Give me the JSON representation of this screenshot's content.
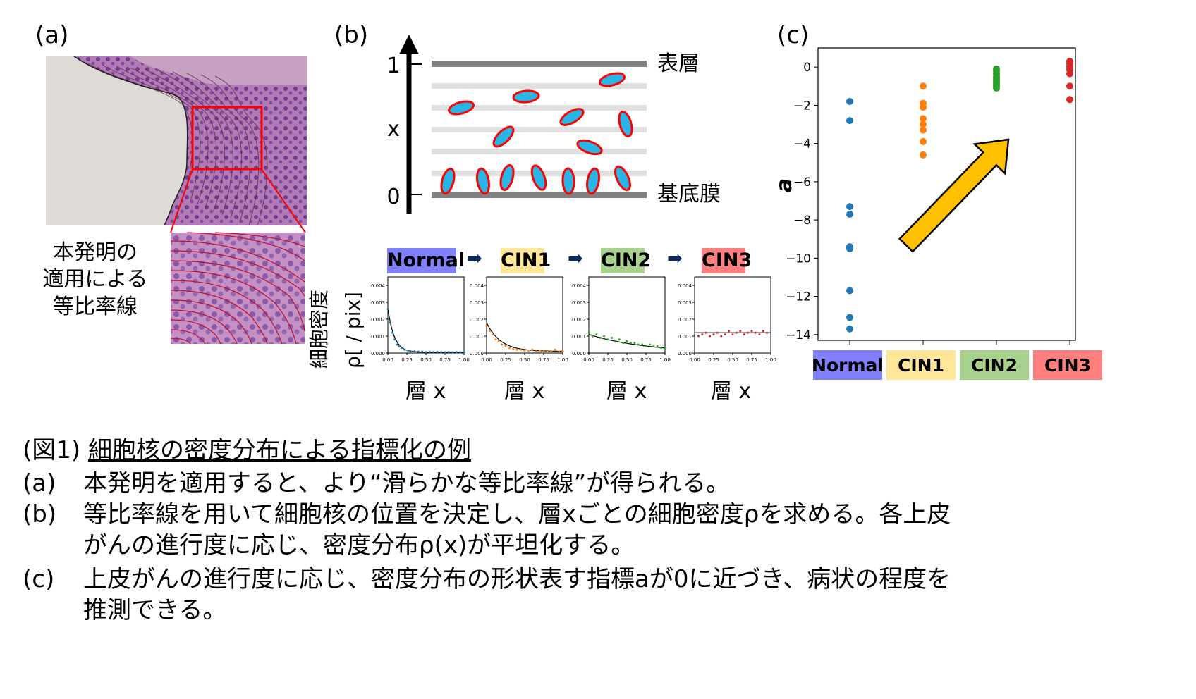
{
  "panel_labels": {
    "a": "(a)",
    "b": "(b)",
    "c": "(c)"
  },
  "panel_a": {
    "annotation_lines": [
      "本発明の",
      "適用による",
      "等比率線"
    ]
  },
  "panel_b": {
    "axis_top": "1",
    "axis_mid": "x",
    "axis_bottom": "0",
    "layer_top_label": "表層",
    "layer_bottom_label": "基底膜",
    "stages": [
      "Normal",
      "CIN1",
      "CIN2",
      "CIN3"
    ],
    "stage_colors": [
      "#8080ff",
      "#ffe699",
      "#a9d18e",
      "#ff7f7f"
    ],
    "arrow_glyph": "➡",
    "ylabel_jp": "細胞密度",
    "ylabel_unit": "ρ[ / pix]",
    "xlabel": "層 x",
    "mini_yticks": [
      "0.004",
      "0.003",
      "0.002",
      "0.001",
      "0.000"
    ],
    "mini_xticks": [
      "0.00",
      "0.25",
      "0.50",
      "0.75",
      "1.00"
    ],
    "mini_plots": [
      {
        "stage": "Normal",
        "point_color": "#1f77b4",
        "points": [
          [
            0.0,
            0.0026
          ],
          [
            0.03,
            0.0018
          ],
          [
            0.06,
            0.0012
          ],
          [
            0.09,
            0.0008
          ],
          [
            0.12,
            0.0005
          ],
          [
            0.15,
            0.0004
          ],
          [
            0.18,
            0.0003
          ],
          [
            0.22,
            0.0002
          ],
          [
            0.26,
            0.00015
          ],
          [
            0.3,
            0.0001
          ],
          [
            0.35,
            0.0001
          ],
          [
            0.4,
            8e-05
          ],
          [
            0.45,
            8e-05
          ],
          [
            0.5,
            5e-05
          ],
          [
            0.55,
            6e-05
          ],
          [
            0.6,
            5e-05
          ],
          [
            0.65,
            6e-05
          ],
          [
            0.7,
            5e-05
          ],
          [
            0.75,
            4e-05
          ],
          [
            0.8,
            5e-05
          ],
          [
            0.85,
            4e-05
          ],
          [
            0.9,
            5e-05
          ],
          [
            0.95,
            4e-05
          ],
          [
            1.0,
            5e-05
          ]
        ],
        "fit": {
          "a": -12.0,
          "b": 0.0026,
          "c": 4e-05
        }
      },
      {
        "stage": "CIN1",
        "point_color": "#ff7f0e",
        "points": [
          [
            0.0,
            0.0016
          ],
          [
            0.04,
            0.0013
          ],
          [
            0.08,
            0.0011
          ],
          [
            0.12,
            0.0008
          ],
          [
            0.16,
            0.0007
          ],
          [
            0.2,
            0.0005
          ],
          [
            0.25,
            0.0004
          ],
          [
            0.3,
            0.0003
          ],
          [
            0.35,
            0.00025
          ],
          [
            0.4,
            0.0002
          ],
          [
            0.45,
            0.0002
          ],
          [
            0.5,
            0.00015
          ],
          [
            0.55,
            0.00015
          ],
          [
            0.6,
            0.0002
          ],
          [
            0.65,
            0.0001
          ],
          [
            0.7,
            0.00015
          ],
          [
            0.75,
            0.0001
          ],
          [
            0.8,
            0.00015
          ],
          [
            0.85,
            0.0001
          ],
          [
            0.9,
            0.0002
          ],
          [
            0.95,
            0.0001
          ],
          [
            1.0,
            0.00012
          ]
        ],
        "fit": {
          "a": -5.5,
          "b": 0.0017,
          "c": 0.0001
        }
      },
      {
        "stage": "CIN2",
        "point_color": "#2ca02c",
        "points": [
          [
            0.0,
            0.0012
          ],
          [
            0.05,
            0.001
          ],
          [
            0.1,
            0.0011
          ],
          [
            0.15,
            0.0009
          ],
          [
            0.2,
            0.001
          ],
          [
            0.25,
            0.0008
          ],
          [
            0.3,
            0.0009
          ],
          [
            0.35,
            0.0007
          ],
          [
            0.4,
            0.0008
          ],
          [
            0.45,
            0.0006
          ],
          [
            0.5,
            0.0007
          ],
          [
            0.55,
            0.0006
          ],
          [
            0.6,
            0.0006
          ],
          [
            0.65,
            0.0005
          ],
          [
            0.7,
            0.0005
          ],
          [
            0.75,
            0.0004
          ],
          [
            0.8,
            0.0005
          ],
          [
            0.85,
            0.0004
          ],
          [
            0.9,
            0.0004
          ],
          [
            0.95,
            0.0003
          ],
          [
            1.0,
            0.0003
          ]
        ],
        "fit": {
          "a": -1.3,
          "b": 0.0011,
          "c": 0.0
        }
      },
      {
        "stage": "CIN3",
        "point_color": "#d62728",
        "points": [
          [
            0.05,
            0.001
          ],
          [
            0.1,
            0.0011
          ],
          [
            0.15,
            0.0012
          ],
          [
            0.2,
            0.001
          ],
          [
            0.25,
            0.0011
          ],
          [
            0.3,
            0.0012
          ],
          [
            0.35,
            0.001
          ],
          [
            0.4,
            0.0011
          ],
          [
            0.45,
            0.0013
          ],
          [
            0.5,
            0.0011
          ],
          [
            0.55,
            0.0012
          ],
          [
            0.6,
            0.0013
          ],
          [
            0.65,
            0.0011
          ],
          [
            0.7,
            0.0012
          ],
          [
            0.75,
            0.0013
          ],
          [
            0.8,
            0.0012
          ],
          [
            0.85,
            0.0011
          ],
          [
            0.9,
            0.0013
          ],
          [
            0.95,
            0.0012
          ]
        ],
        "fit": {
          "a": 0.0,
          "b": 0.0012,
          "c": 0.0
        }
      }
    ]
  },
  "chart_data": {
    "type": "scatter",
    "title": "",
    "xlabel": "",
    "ylabel": "a",
    "ylim": [
      -14.3,
      1.0
    ],
    "yticks": [
      0,
      -2,
      -4,
      -6,
      -8,
      -10,
      -12,
      -14
    ],
    "categories": [
      "Normal",
      "CIN1",
      "CIN2",
      "CIN3"
    ],
    "category_colors": [
      "#8080ff",
      "#ffe699",
      "#a9d18e",
      "#ff7f7f"
    ],
    "series": [
      {
        "name": "Normal",
        "color": "#1f77b4",
        "values": [
          -1.8,
          -2.8,
          -7.3,
          -7.7,
          -9.4,
          -9.5,
          -11.7,
          -13.1,
          -13.7
        ]
      },
      {
        "name": "CIN1",
        "color": "#ff7f0e",
        "values": [
          -1.0,
          -1.9,
          -2.1,
          -2.7,
          -3.0,
          -3.3,
          -3.9,
          -4.6
        ]
      },
      {
        "name": "CIN2",
        "color": "#2ca02c",
        "values": [
          -0.1,
          -0.2,
          -0.35,
          -0.5,
          -0.6,
          -0.7,
          -0.8,
          -0.9,
          -1.0,
          -1.1
        ]
      },
      {
        "name": "CIN3",
        "color": "#d62728",
        "values": [
          0.3,
          0.2,
          0.05,
          -0.05,
          -0.15,
          -0.35,
          -1.0,
          -1.7
        ]
      }
    ]
  },
  "caption": {
    "title_prefix": "(図1) ",
    "title_text": "細胞核の密度分布による指標化の例",
    "items": [
      {
        "label": "(a)",
        "lines": [
          "本発明を適用すると、より“滑らかな等比率線”が得られる。"
        ]
      },
      {
        "label": "(b)",
        "lines": [
          "等比率線を用いて細胞核の位置を決定し、層xごとの細胞密度ρを求める。各上皮",
          "がんの進行度に応じ、密度分布ρ(x)が平坦化する。"
        ]
      },
      {
        "label": "(c)",
        "lines": [
          "上皮がんの進行度に応じ、密度分布の形状表す指標aが0に近づき、病状の程度を",
          "推測できる。"
        ]
      }
    ]
  }
}
